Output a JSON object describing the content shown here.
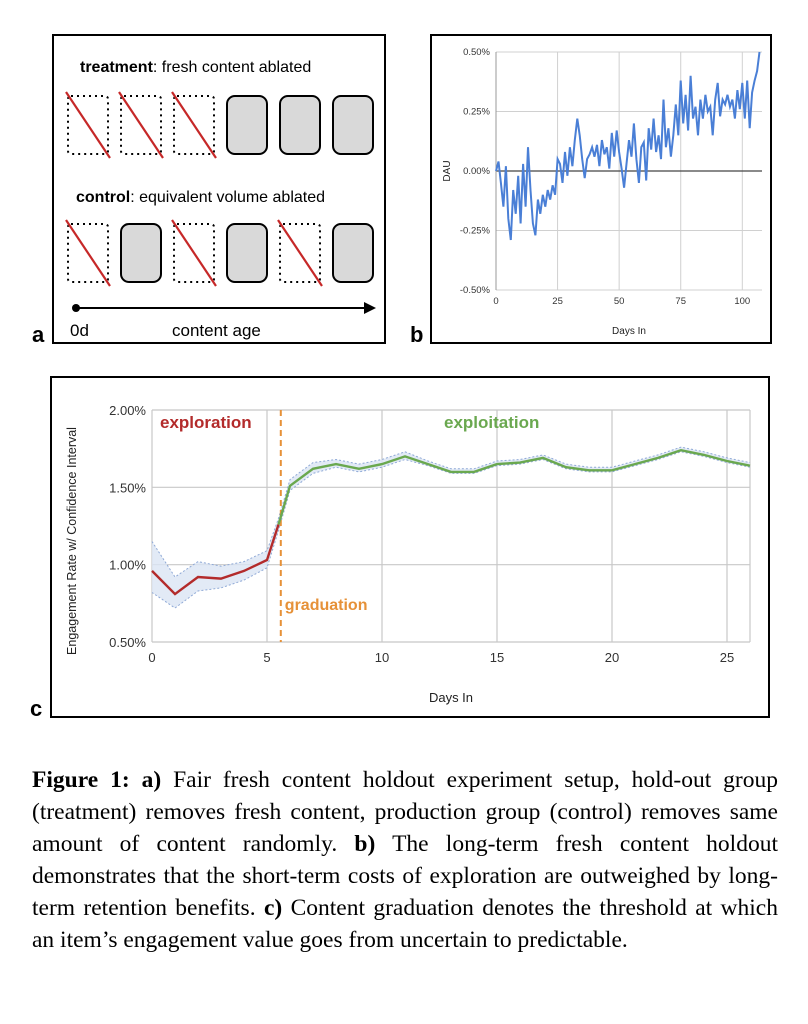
{
  "panel_labels": {
    "a": "a",
    "b": "b",
    "c": "c"
  },
  "panel_a": {
    "treatment_bold": "treatment",
    "treatment_rest": ": fresh content ablated",
    "control_bold": "control",
    "control_rest": ": equivalent volume ablated",
    "axis_start": "0d",
    "axis_label": "content age",
    "treatment_row": [
      "ablated",
      "ablated",
      "ablated",
      "kept",
      "kept",
      "kept"
    ],
    "control_row": [
      "ablated",
      "kept",
      "ablated",
      "kept",
      "ablated",
      "kept"
    ]
  },
  "chart_data": [
    {
      "panel": "b",
      "type": "line",
      "ylabel": "DAU",
      "xlabel": "Days In",
      "xlim": [
        0,
        108
      ],
      "ylim": [
        -0.5,
        0.5
      ],
      "xticks": [
        "0",
        "25",
        "50",
        "75",
        "100"
      ],
      "yticks": [
        "0.50%",
        "0.25%",
        "0.00%",
        "-0.25%",
        "-0.50%"
      ],
      "series_color": "#4a7fd6",
      "zero_line": true,
      "x": [
        0,
        1,
        2,
        3,
        4,
        5,
        6,
        7,
        8,
        9,
        10,
        11,
        12,
        13,
        14,
        15,
        16,
        17,
        18,
        19,
        20,
        21,
        22,
        23,
        24,
        25,
        26,
        27,
        28,
        29,
        30,
        31,
        32,
        33,
        34,
        35,
        36,
        37,
        38,
        39,
        40,
        41,
        42,
        43,
        44,
        45,
        46,
        47,
        48,
        49,
        50,
        51,
        52,
        53,
        54,
        55,
        56,
        57,
        58,
        59,
        60,
        61,
        62,
        63,
        64,
        65,
        66,
        67,
        68,
        69,
        70,
        71,
        72,
        73,
        74,
        75,
        76,
        77,
        78,
        79,
        80,
        81,
        82,
        83,
        84,
        85,
        86,
        87,
        88,
        89,
        90,
        91,
        92,
        93,
        94,
        95,
        96,
        97,
        98,
        99,
        100,
        101,
        102,
        103,
        104,
        105,
        106,
        107
      ],
      "values": [
        0.0,
        0.04,
        -0.05,
        -0.15,
        0.02,
        -0.2,
        -0.29,
        -0.08,
        -0.18,
        -0.02,
        -0.22,
        0.03,
        -0.15,
        0.1,
        -0.08,
        -0.22,
        -0.27,
        -0.12,
        -0.18,
        -0.1,
        -0.15,
        -0.08,
        -0.12,
        -0.06,
        -0.1,
        0.05,
        0.03,
        -0.05,
        0.08,
        -0.02,
        0.1,
        0.02,
        0.13,
        0.22,
        0.15,
        0.05,
        -0.03,
        0.05,
        0.07,
        0.1,
        0.06,
        0.11,
        0.02,
        0.13,
        0.07,
        0.1,
        0.01,
        0.16,
        0.06,
        0.17,
        0.08,
        0.01,
        -0.07,
        0.03,
        0.13,
        0.06,
        0.2,
        0.05,
        -0.05,
        0.1,
        0.12,
        -0.04,
        0.18,
        0.09,
        0.22,
        0.08,
        0.15,
        0.05,
        0.3,
        0.1,
        0.18,
        0.06,
        0.15,
        0.28,
        0.15,
        0.38,
        0.2,
        0.32,
        0.17,
        0.4,
        0.22,
        0.27,
        0.15,
        0.3,
        0.22,
        0.32,
        0.25,
        0.27,
        0.15,
        0.3,
        0.37,
        0.23,
        0.3,
        0.28,
        0.32,
        0.27,
        0.3,
        0.22,
        0.34,
        0.26,
        0.37,
        0.22,
        0.38,
        0.18,
        0.33,
        0.38,
        0.42,
        0.5
      ]
    },
    {
      "panel": "c",
      "type": "line",
      "ylabel": "Engagement Rate w/ Confidence Interval",
      "xlabel": "Days In",
      "xlim": [
        0,
        26
      ],
      "ylim": [
        0.5,
        2.0
      ],
      "xticks": [
        "0",
        "5",
        "10",
        "15",
        "20",
        "25"
      ],
      "yticks": [
        "2.00%",
        "1.50%",
        "1.00%",
        "0.50%"
      ],
      "series": [
        {
          "name": "exploration",
          "color": "#b32b2b",
          "x": [
            0,
            1,
            2,
            3,
            4,
            5,
            5.5
          ],
          "y": [
            0.96,
            0.81,
            0.92,
            0.91,
            0.96,
            1.03,
            1.26
          ]
        },
        {
          "name": "exploitation",
          "color": "#6aa84f",
          "x": [
            5.5,
            6,
            7,
            8,
            9,
            10,
            11,
            12,
            13,
            14,
            15,
            16,
            17,
            18,
            19,
            20,
            21,
            22,
            23,
            24,
            25,
            26
          ],
          "y": [
            1.26,
            1.51,
            1.62,
            1.65,
            1.62,
            1.65,
            1.7,
            1.65,
            1.6,
            1.6,
            1.65,
            1.66,
            1.69,
            1.63,
            1.61,
            1.61,
            1.65,
            1.69,
            1.74,
            1.71,
            1.67,
            1.64
          ]
        }
      ],
      "ci_lower": [
        0.82,
        0.72,
        0.83,
        0.85,
        0.9,
        0.98,
        1.22,
        1.48,
        1.59,
        1.63,
        1.6,
        1.63,
        1.68,
        1.64,
        1.59,
        1.59,
        1.64,
        1.65,
        1.68,
        1.62,
        1.6,
        1.6,
        1.64,
        1.68,
        1.73,
        1.7,
        1.66,
        1.63
      ],
      "ci_upper": [
        1.15,
        0.92,
        1.02,
        0.99,
        1.02,
        1.09,
        1.3,
        1.55,
        1.66,
        1.68,
        1.65,
        1.68,
        1.73,
        1.67,
        1.62,
        1.62,
        1.67,
        1.68,
        1.71,
        1.65,
        1.63,
        1.63,
        1.67,
        1.71,
        1.76,
        1.73,
        1.69,
        1.66
      ],
      "ci_x": [
        0,
        1,
        2,
        3,
        4,
        5,
        5.5,
        6,
        7,
        8,
        9,
        10,
        11,
        12,
        13,
        14,
        15,
        16,
        17,
        18,
        19,
        20,
        21,
        22,
        23,
        24,
        25,
        26
      ],
      "ci_color": "#8fa9d6",
      "graduation_x": 5.6,
      "graduation_color": "#e69138",
      "annotations": {
        "exploration": "exploration",
        "exploitation": "exploitation",
        "graduation": "graduation"
      }
    }
  ],
  "caption": {
    "figure_label": "Figure 1: a)",
    "text_a": " Fair fresh content holdout experiment setup, hold-out group (treatment) removes fresh content, production group (control) removes same amount of content randomly. ",
    "b_label": "b)",
    "text_b": " The long-term fresh content holdout demonstrates that the short-term costs of exploration are outweighed by long-term retention benefits. ",
    "c_label": "c)",
    "text_c": " Content graduation denotes the threshold at which an item’s engagement value goes from uncertain to predictable."
  }
}
